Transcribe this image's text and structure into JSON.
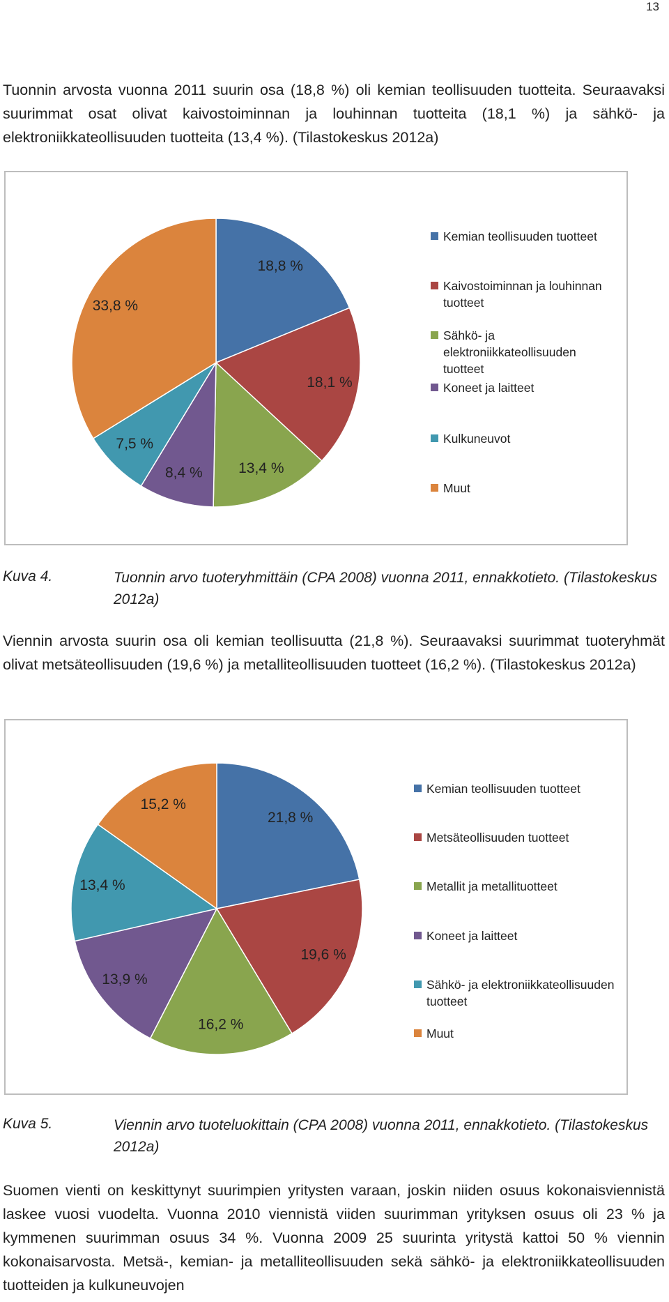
{
  "page_number": "13",
  "paragraphs": [
    "Tuonnin arvosta vuonna 2011 suurin osa (18,8 %) oli kemian teollisuuden tuotteita. Seuraavaksi suurimmat osat olivat kaivostoiminnan ja louhinnan tuotteita (18,1 %) ja sähkö- ja elektroniikkateollisuuden tuotteita (13,4 %). (Tilastokeskus 2012a)",
    "Viennin arvosta suurin osa oli kemian teollisuutta (21,8 %). Seuraavaksi suurimmat tuoteryhmät olivat metsäteollisuuden (19,6 %) ja metalliteollisuuden tuotteet (16,2 %). (Tilastokeskus 2012a)",
    "Suomen vienti on keskittynyt suurimpien yritysten varaan, joskin niiden osuus kokonaisviennistä laskee vuosi vuodelta. Vuonna 2010 viennistä viiden suurimman yrityksen osuus oli 23 % ja kymmenen suurimman osuus 34 %. Vuonna 2009 25 suurinta yritystä kattoi 50 % viennin kokonaisarvosta. Metsä-, kemian- ja metalliteollisuuden sekä sähkö- ja elektroniikkateollisuuden tuotteiden ja kulkuneuvojen"
  ],
  "captions": [
    {
      "label": "Kuva 4.",
      "text": "Tuonnin arvo tuoteryhmittäin (CPA 2008) vuonna 2011, ennakkotieto. (Tilastokeskus 2012a)"
    },
    {
      "label": "Kuva 5.",
      "text": "Viennin arvo tuoteluokittain (CPA 2008) vuonna 2011, ennakkotieto. (Tilastokeskus 2012a)"
    }
  ],
  "chart_data": [
    {
      "type": "pie",
      "categories": [
        "Kemian teollisuuden tuotteet",
        "Kaivostoiminnan ja louhinnan tuotteet",
        "Sähkö- ja elektroniikkateollisuuden tuotteet",
        "Koneet ja laitteet",
        "Kulkuneuvot",
        "Muut"
      ],
      "values": [
        18.8,
        18.1,
        13.4,
        8.4,
        7.5,
        33.8
      ],
      "value_labels": [
        "18,8 %",
        "18,1 %",
        "13,4 %",
        "8,4 %",
        "7,5 %",
        "33,8 %"
      ],
      "colors": [
        "#4572a7",
        "#aa4643",
        "#89a54e",
        "#71588f",
        "#4198af",
        "#db843d"
      ],
      "legend": "right"
    },
    {
      "type": "pie",
      "categories": [
        "Kemian teollisuuden tuotteet",
        "Metsäteollisuuden tuotteet",
        "Metallit ja metallituotteet",
        "Koneet ja laitteet",
        "Sähkö- ja elektroniikkateollisuuden tuotteet",
        "Muut"
      ],
      "values": [
        21.8,
        19.6,
        16.2,
        13.9,
        13.4,
        15.2
      ],
      "value_labels": [
        "21,8 %",
        "19,6 %",
        "16,2 %",
        "13,9 %",
        "13,4 %",
        "15,2 %"
      ],
      "colors": [
        "#4572a7",
        "#aa4643",
        "#89a54e",
        "#71588f",
        "#4198af",
        "#db843d"
      ],
      "legend": "right"
    }
  ]
}
